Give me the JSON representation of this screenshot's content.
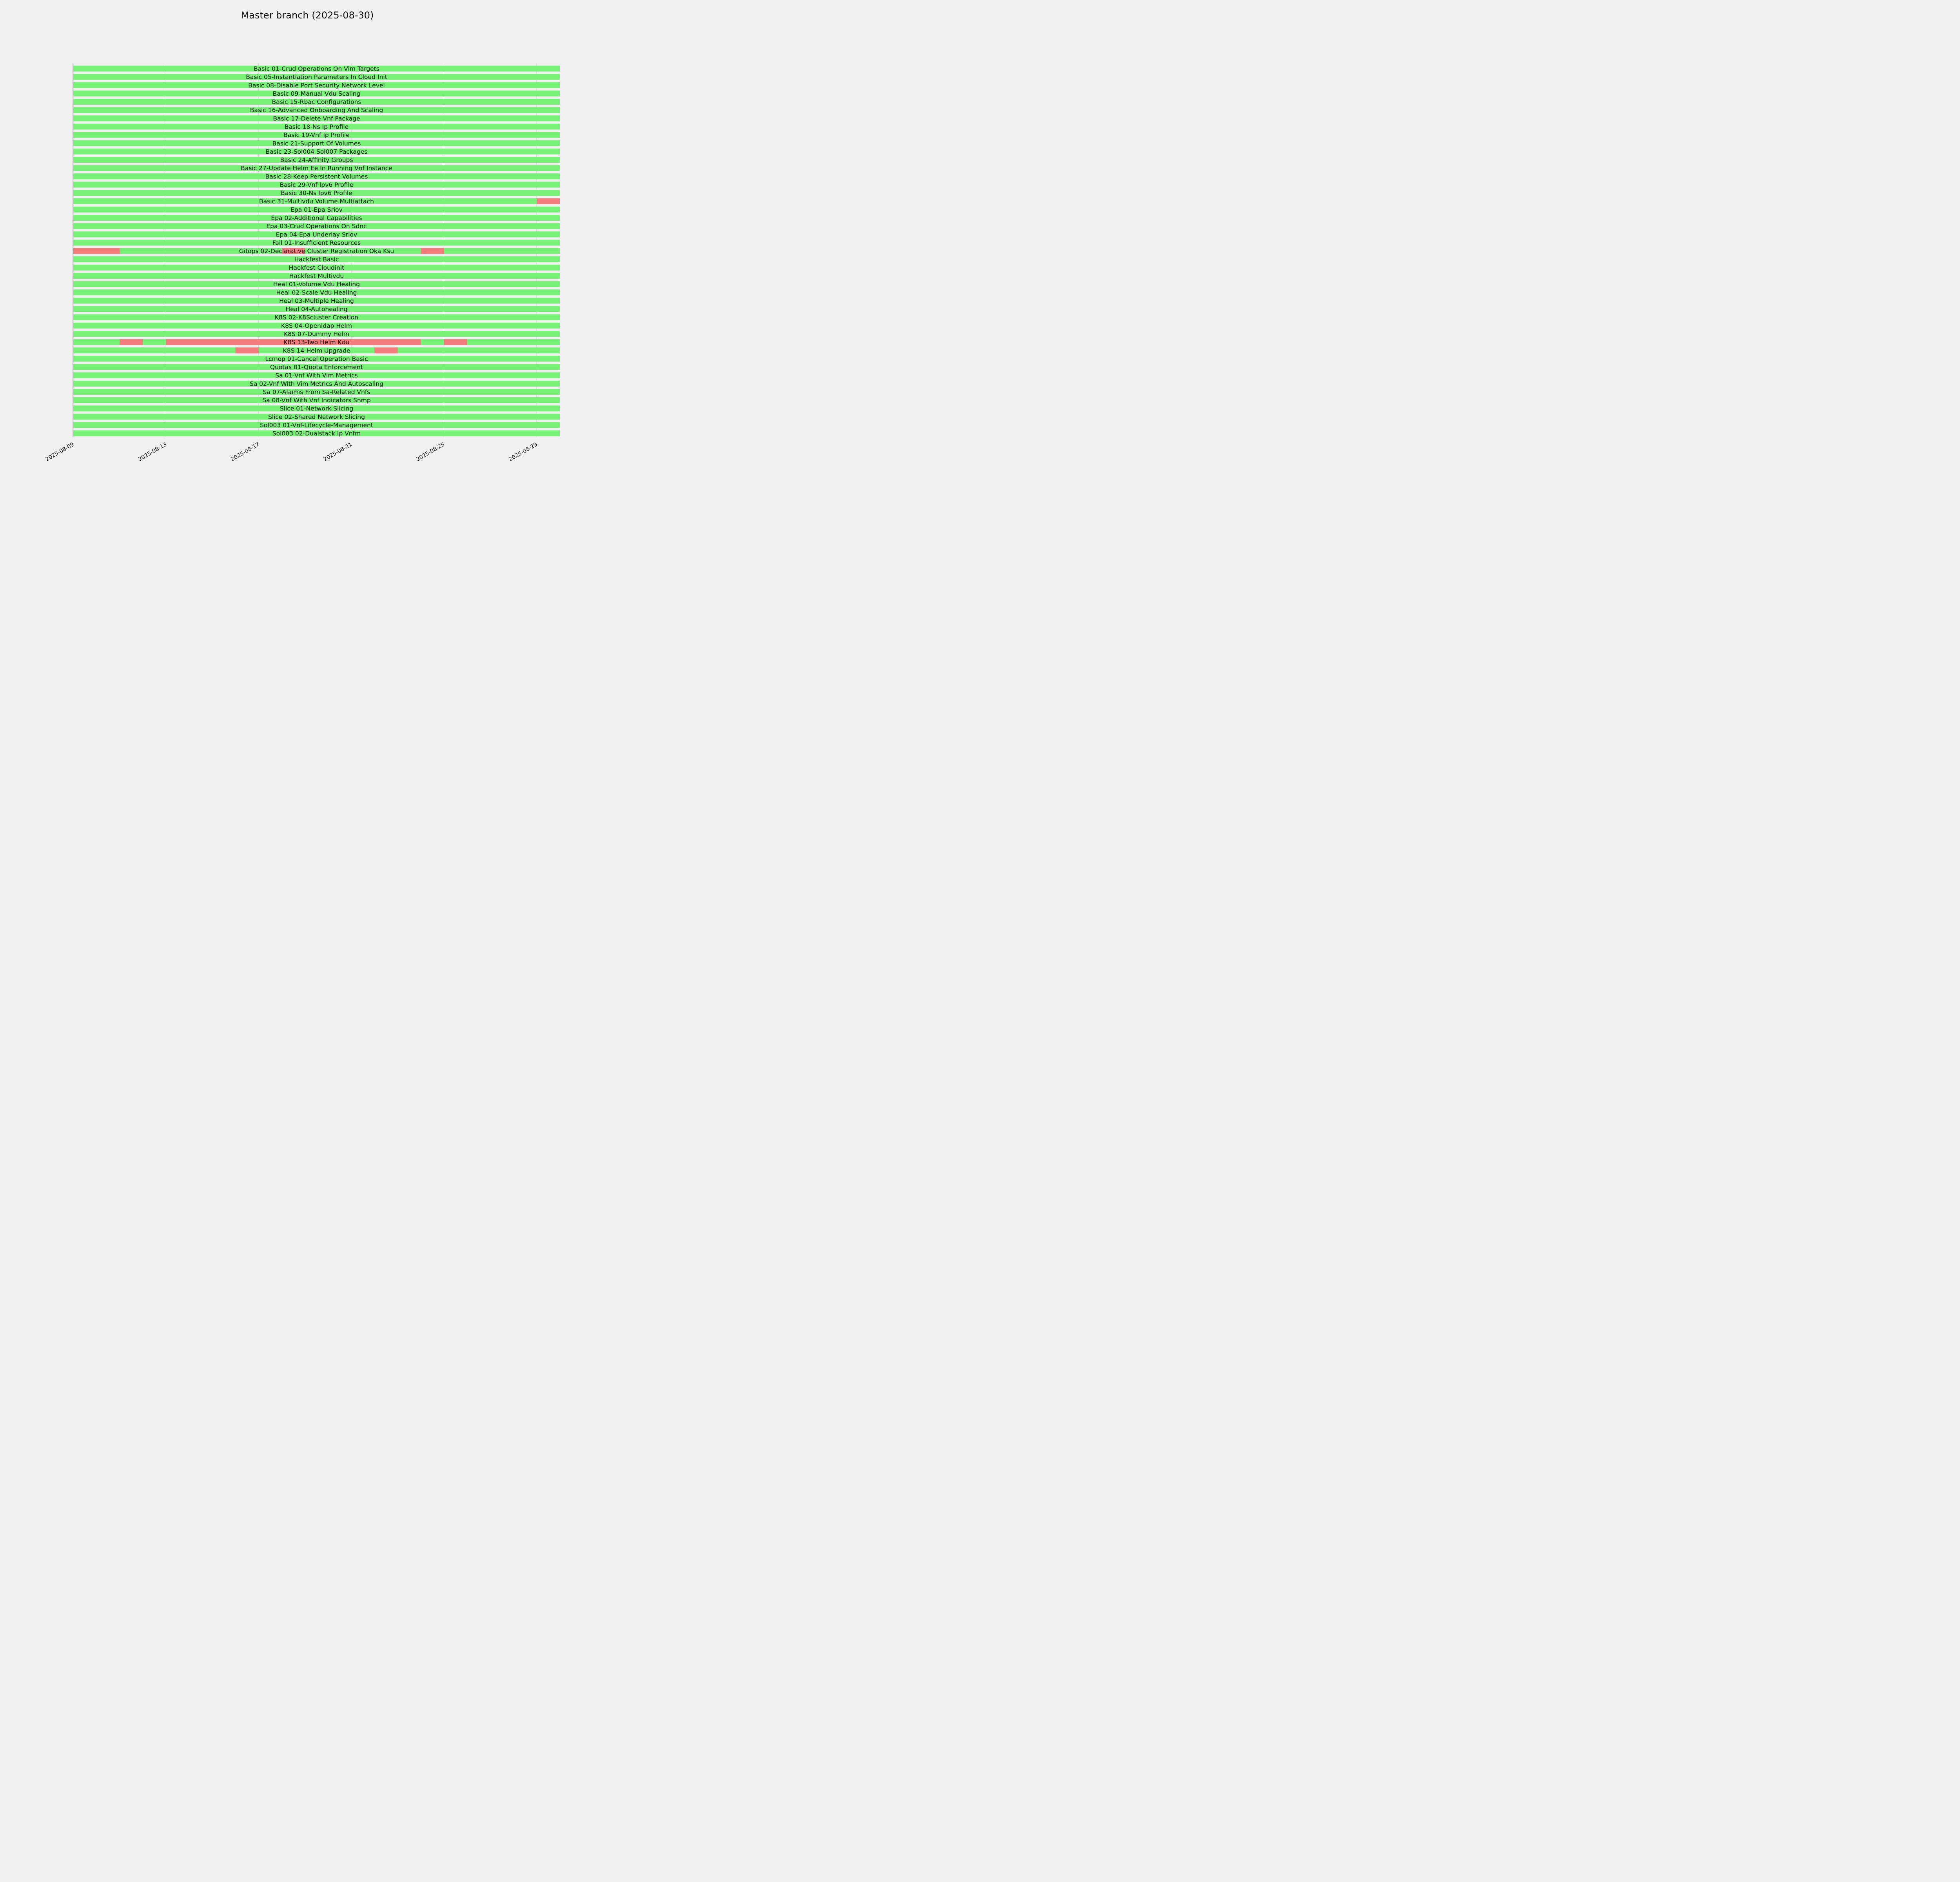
{
  "title": "Master branch (2025-08-30)",
  "colors": {
    "pass": "#77f277",
    "fail": "#f57c7c",
    "background": "#f0f0f0"
  },
  "chart_data": {
    "type": "timeline",
    "title": "Master branch (2025-08-30)",
    "x_start": "2025-08-09",
    "x_end": "2025-08-30",
    "x_ticks": [
      "2025-08-09",
      "2025-08-13",
      "2025-08-17",
      "2025-08-21",
      "2025-08-25",
      "2025-08-29"
    ],
    "grid": true,
    "legend": "none",
    "series": [
      {
        "name": "Basic 01-Crud Operations On Vim Targets",
        "failures": []
      },
      {
        "name": "Basic 05-Instantiation Parameters In Cloud Init",
        "failures": []
      },
      {
        "name": "Basic 08-Disable Port Security Network Level",
        "failures": []
      },
      {
        "name": "Basic 09-Manual Vdu Scaling",
        "failures": []
      },
      {
        "name": "Basic 15-Rbac Configurations",
        "failures": []
      },
      {
        "name": "Basic 16-Advanced Onboarding And Scaling",
        "failures": []
      },
      {
        "name": "Basic 17-Delete Vnf Package",
        "failures": []
      },
      {
        "name": "Basic 18-Ns Ip Profile",
        "failures": []
      },
      {
        "name": "Basic 19-Vnf Ip Profile",
        "failures": []
      },
      {
        "name": "Basic 21-Support Of Volumes",
        "failures": []
      },
      {
        "name": "Basic 23-Sol004 Sol007 Packages",
        "failures": []
      },
      {
        "name": "Basic 24-Affinity Groups",
        "failures": []
      },
      {
        "name": "Basic 27-Update Helm Ee In Running Vnf Instance",
        "failures": []
      },
      {
        "name": "Basic 28-Keep Persistent Volumes",
        "failures": []
      },
      {
        "name": "Basic 29-Vnf Ipv6 Profile",
        "failures": []
      },
      {
        "name": "Basic 30-Ns Ipv6 Profile",
        "failures": []
      },
      {
        "name": "Basic 31-Multivdu Volume Multiattach",
        "failures": [
          [
            "2025-08-29",
            "2025-08-30"
          ]
        ]
      },
      {
        "name": "Epa 01-Epa Sriov",
        "failures": []
      },
      {
        "name": "Epa 02-Additional Capabilities",
        "failures": []
      },
      {
        "name": "Epa 03-Crud Operations On Sdnc",
        "failures": []
      },
      {
        "name": "Epa 04-Epa Underlay Sriov",
        "failures": []
      },
      {
        "name": "Fail 01-Insufficient Resources",
        "failures": []
      },
      {
        "name": "Gitops 02-Declarative Cluster Registration Oka Ksu",
        "failures": [
          [
            "2025-08-09",
            "2025-08-11"
          ],
          [
            "2025-08-18",
            "2025-08-19"
          ],
          [
            "2025-08-24",
            "2025-08-25"
          ]
        ]
      },
      {
        "name": "Hackfest Basic",
        "failures": []
      },
      {
        "name": "Hackfest Cloudinit",
        "failures": []
      },
      {
        "name": "Hackfest Multivdu",
        "failures": []
      },
      {
        "name": "Heal 01-Volume Vdu Healing",
        "failures": []
      },
      {
        "name": "Heal 02-Scale Vdu Healing",
        "failures": []
      },
      {
        "name": "Heal 03-Multiple Healing",
        "failures": []
      },
      {
        "name": "Heal 04-Autohealing",
        "failures": []
      },
      {
        "name": "K8S 02-K8Scluster Creation",
        "failures": []
      },
      {
        "name": "K8S 04-Openldap Helm",
        "failures": []
      },
      {
        "name": "K8S 07-Dummy Helm",
        "failures": []
      },
      {
        "name": "K8S 13-Two Helm Kdu",
        "failures": [
          [
            "2025-08-11",
            "2025-08-12"
          ],
          [
            "2025-08-13",
            "2025-08-24"
          ],
          [
            "2025-08-25",
            "2025-08-26"
          ]
        ]
      },
      {
        "name": "K8S 14-Helm Upgrade",
        "failures": [
          [
            "2025-08-16",
            "2025-08-17"
          ],
          [
            "2025-08-22",
            "2025-08-23"
          ]
        ]
      },
      {
        "name": "Lcmop 01-Cancel Operation Basic",
        "failures": []
      },
      {
        "name": "Quotas 01-Quota Enforcement",
        "failures": []
      },
      {
        "name": "Sa 01-Vnf With Vim Metrics",
        "failures": []
      },
      {
        "name": "Sa 02-Vnf With Vim Metrics And Autoscaling",
        "failures": []
      },
      {
        "name": "Sa 07-Alarms From Sa-Related Vnfs",
        "failures": []
      },
      {
        "name": "Sa 08-Vnf With Vnf Indicators Snmp",
        "failures": []
      },
      {
        "name": "Slice 01-Network Slicing",
        "failures": []
      },
      {
        "name": "Slice 02-Shared Network Slicing",
        "failures": []
      },
      {
        "name": "Sol003 01-Vnf-Lifecycle-Management",
        "failures": []
      },
      {
        "name": "Sol003 02-Dualstack Ip Vnfm",
        "failures": []
      }
    ]
  }
}
